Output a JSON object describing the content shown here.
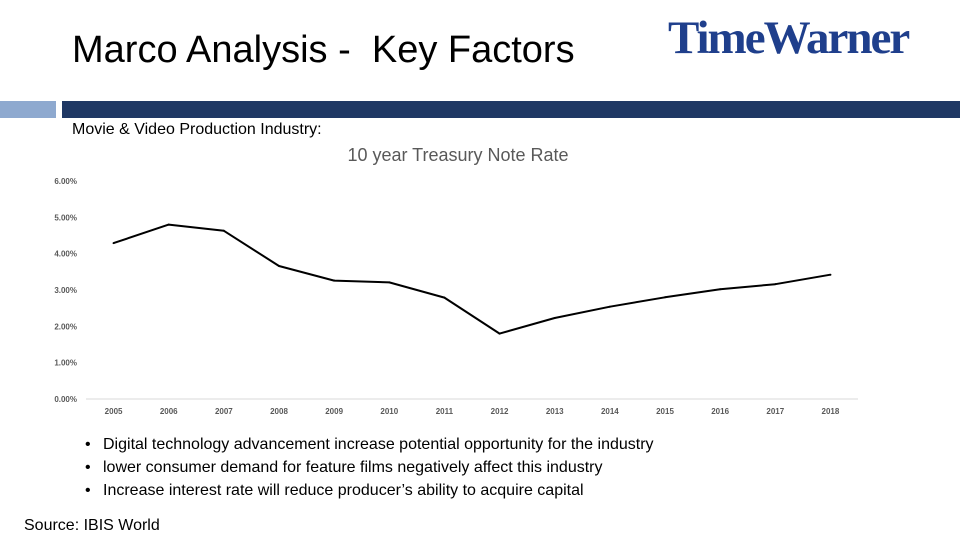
{
  "slide": {
    "title": "Marco Analysis -  Key Factors",
    "logo_text": "TimeWarner",
    "subtitle": "Movie & Video Production Industry:",
    "bullets": [
      "Digital technology advancement increase potential opportunity for the industry",
      "lower consumer demand for feature films negatively affect this industry",
      "Increase interest rate will reduce producer’s ability to acquire capital"
    ],
    "source": "Source: IBIS World"
  },
  "colors": {
    "logo": "#1f3f8c",
    "bar_light": "#8ea9cf",
    "bar_dark": "#1f3864",
    "line": "#000000"
  },
  "chart_data": {
    "type": "line",
    "title": "10 year Treasury Note Rate",
    "x": [
      "2005",
      "2006",
      "2007",
      "2008",
      "2009",
      "2010",
      "2011",
      "2012",
      "2013",
      "2014",
      "2015",
      "2016",
      "2017",
      "2018"
    ],
    "series": [
      {
        "values": [
          4.29,
          4.8,
          4.63,
          3.66,
          3.26,
          3.21,
          2.79,
          1.8,
          2.23,
          2.54,
          2.8,
          3.02,
          3.16,
          3.42
        ]
      }
    ],
    "y_ticks": [
      "0.00%",
      "1.00%",
      "2.00%",
      "3.00%",
      "4.00%",
      "5.00%",
      "6.00%"
    ],
    "ylim": [
      0,
      6
    ],
    "grid": false,
    "xlabel": "",
    "ylabel": ""
  }
}
